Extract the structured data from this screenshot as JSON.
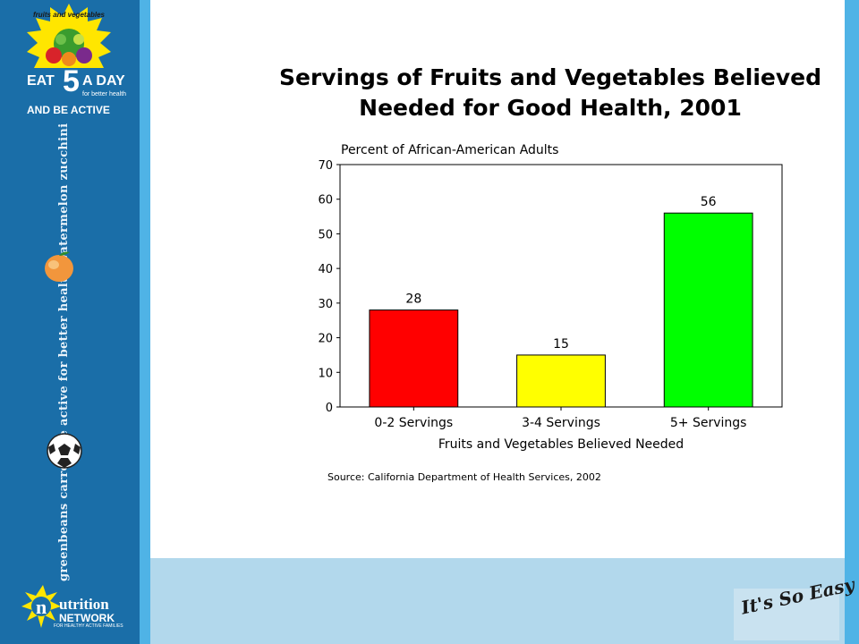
{
  "branding": {
    "logo_banner": "fruits and vegetables",
    "eat": "EAT",
    "five": "5",
    "a_day": "A DAY",
    "for_better_health": "for better health",
    "and_be_active": "AND BE ACTIVE",
    "sidebar_words": "greenbeans   carrots   be active for better health   watermelon   zucchini",
    "nutrition": "utrition",
    "network": "NETWORK",
    "network_tag": "FOR HEALTHY ACTIVE FAMILIES",
    "easy": "It's So Easy"
  },
  "colors": {
    "sidebar": "#1a6ea8",
    "stripe": "#4fb3e6",
    "band": "#b2d8ec",
    "bar_0_2": "#ff0000",
    "bar_3_4": "#ffff00",
    "bar_5_plus": "#00ff00"
  },
  "chart_data": {
    "type": "bar",
    "title": "Servings of Fruits and Vegetables Believed Needed for Good Health, 2001",
    "title_lines": [
      "Servings of Fruits and Vegetables Believed",
      "Needed for Good Health, 2001"
    ],
    "ylabel": "Percent of African-American Adults",
    "xlabel": "Fruits and Vegetables Believed Needed",
    "categories": [
      "0-2 Servings",
      "3-4 Servings",
      "5+ Servings"
    ],
    "values": [
      28,
      15,
      56
    ],
    "data_labels": [
      "28",
      "15",
      "56"
    ],
    "bar_colors": [
      "#ff0000",
      "#ffff00",
      "#00ff00"
    ],
    "ylim": [
      0,
      70
    ],
    "yticks": [
      0,
      10,
      20,
      30,
      40,
      50,
      60,
      70
    ],
    "grid": false,
    "legend": "none",
    "source": "Source: California Department of Health Services, 2002"
  }
}
